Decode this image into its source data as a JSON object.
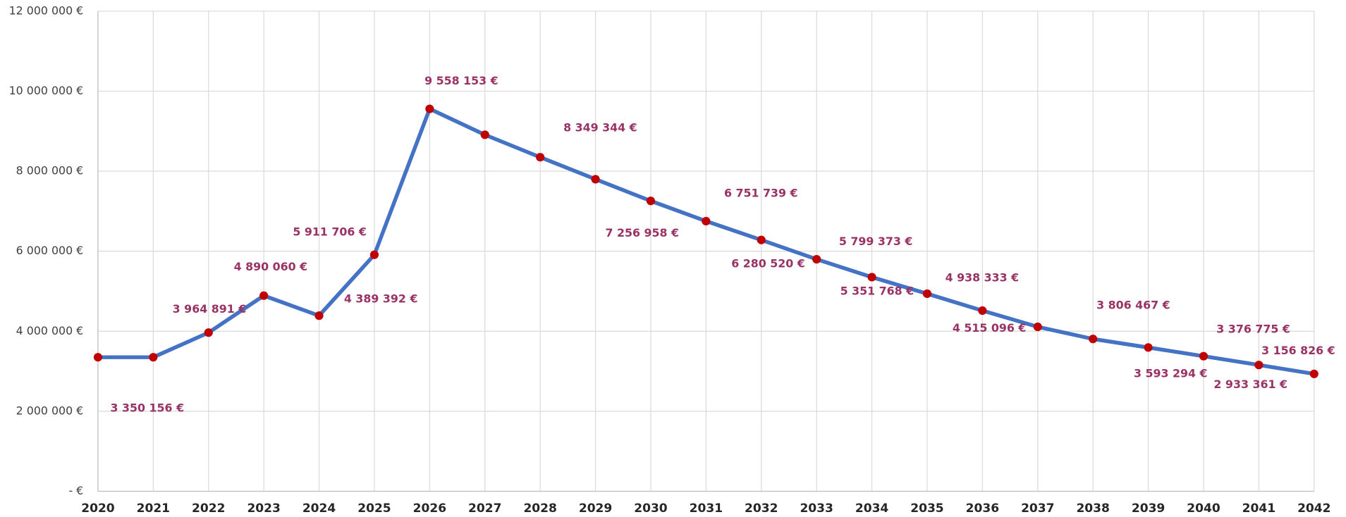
{
  "chart_data": {
    "type": "line",
    "categories": [
      "2020",
      "2021",
      "2022",
      "2023",
      "2024",
      "2025",
      "2026",
      "2027",
      "2028",
      "2029",
      "2030",
      "2031",
      "2032",
      "2033",
      "2034",
      "2035",
      "2036",
      "2037",
      "2038",
      "2039",
      "2040",
      "2041",
      "2042"
    ],
    "series": [
      {
        "color": "#4472c4",
        "marker_color": "#c00000",
        "values": [
          3350156,
          3350156,
          3964891,
          4890060,
          4389392,
          5911706,
          9558153,
          8910000,
          8349344,
          7800000,
          7256958,
          6751739,
          6280520,
          5799373,
          5351768,
          4938333,
          4515096,
          4110000,
          3806467,
          3593294,
          3376775,
          3156826,
          2933361
        ],
        "value_labels": [
          null,
          "3 350 156 €",
          "3 964 891 €",
          "4 890 060 €",
          "4 389 392 €",
          "5 911 706 €",
          "9 558 153 €",
          null,
          "8 349 344 €",
          null,
          "7 256 958 €",
          "6 751 739 €",
          "6 280 520 €",
          "5 799 373 €",
          "5 351 768 €",
          "4 938 333 €",
          "4 515 096 €",
          null,
          "3 806 467 €",
          "3 593 294 €",
          "3 376 775 €",
          "3 156 826 €",
          "2 933 361 €"
        ]
      }
    ],
    "ylim": [
      0,
      12000000
    ],
    "yticks": [
      {
        "value": 0,
        "label": "- €"
      },
      {
        "value": 2000000,
        "label": "2 000 000 €"
      },
      {
        "value": 4000000,
        "label": "4 000 000 €"
      },
      {
        "value": 6000000,
        "label": "6 000 000 €"
      },
      {
        "value": 8000000,
        "label": "8 000 000 €"
      },
      {
        "value": 10000000,
        "label": "10 000 000 €"
      },
      {
        "value": 12000000,
        "label": "12 000 000 €"
      }
    ],
    "grid": true
  }
}
